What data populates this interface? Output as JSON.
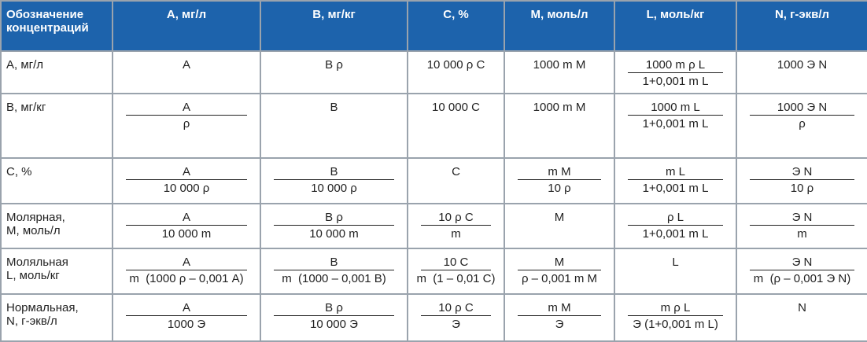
{
  "header": [
    "Обозначение концентраций",
    "A, мг/л",
    "B, мг/кг",
    "C, %",
    "M, моль/л",
    "L, моль/кг",
    "N, г-экв/л"
  ],
  "rows": [
    {
      "label": [
        "A, мг/л"
      ],
      "cells": [
        "A",
        "B ρ",
        "10 000 ρ C",
        "1000 m M",
        {
          "num": "1000 m ρ L",
          "den": "1+0,001 m L"
        },
        "1000 Э N"
      ]
    },
    {
      "label": [
        "B, мг/кг"
      ],
      "cells": [
        {
          "num": "A",
          "den": "ρ"
        },
        "B",
        "10 000 C",
        "1000 m M",
        {
          "num": "1000 m L",
          "den": "1+0,001 m L"
        },
        {
          "num": "1000 Э N",
          "den": "ρ"
        }
      ]
    },
    {
      "label": [
        "C, %"
      ],
      "cells": [
        {
          "num": "A",
          "den": "10 000 ρ"
        },
        {
          "num": "B",
          "den": "10 000 ρ"
        },
        "C",
        {
          "num": "m M",
          "den": "10 ρ"
        },
        {
          "num": "m L",
          "den": "1+0,001 m L"
        },
        {
          "num": "Э N",
          "den": "10 ρ"
        }
      ]
    },
    {
      "label": [
        "Молярная,",
        "M, моль/л"
      ],
      "cells": [
        {
          "num": "A",
          "den": "10 000 m"
        },
        {
          "num": "B ρ",
          "den": "10 000 m"
        },
        {
          "num": "10 ρ C",
          "den": "m"
        },
        "M",
        {
          "num": "ρ L",
          "den": "1+0,001 m L"
        },
        {
          "num": "Э N",
          "den": "m"
        }
      ]
    },
    {
      "label": [
        "Моляльная",
        "L, моль/кг"
      ],
      "cells": [
        {
          "num": "A",
          "den": "m  (1000 ρ – 0,001 A)"
        },
        {
          "num": "B",
          "den": "m  (1000 – 0,001 B)"
        },
        {
          "num": "10 C",
          "den": "m  (1 – 0,01 C)"
        },
        {
          "num": "M",
          "den": "ρ – 0,001 m M"
        },
        "L",
        {
          "num": "Э N",
          "den": "m  (ρ – 0,001 Э N)"
        }
      ]
    },
    {
      "label": [
        "Нормальная,",
        "N, г-экв/л"
      ],
      "cells": [
        {
          "num": "A",
          "den": "1000 Э"
        },
        {
          "num": "B ρ",
          "den": "10 000 Э"
        },
        {
          "num": "10 ρ C",
          "den": "Э"
        },
        {
          "num": "m M",
          "den": "Э"
        },
        {
          "num": "m ρ L",
          "den": "Э (1+0,001 m L)"
        },
        "N"
      ]
    }
  ]
}
